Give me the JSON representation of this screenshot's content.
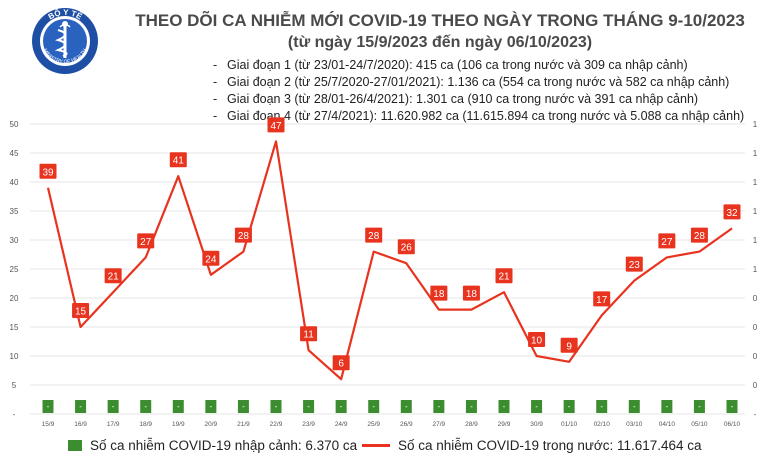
{
  "header": {
    "logo_text": "BỘ Y TẾ",
    "logo_subtext": "MINISTRY OF HEALTH",
    "title": "THEO DÕI CA NHIỄM MỚI COVID-19 THEO NGÀY TRONG THÁNG 9-10/2023",
    "subtitle": "(từ ngày 15/9/2023 đến ngày 06/10/2023)"
  },
  "phases": [
    "Giai đoạn 1 (từ 23/01-24/7/2020): 415 ca (106 ca trong nước và 309 ca nhập cảnh)",
    "Giai đoạn 2 (từ 25/7/2020-27/01/2021): 1.136 ca (554 ca trong nước và 582 ca nhập cảnh)",
    "Giai đoạn 3 (từ 28/01-26/4/2021): 1.301 ca (910 ca trong nước và 391 ca nhập cảnh)",
    "Giai đoạn 4 (từ 27/4/2021): 11.620.982 ca (11.615.894 ca trong nước và 5.088 ca nhập cảnh)"
  ],
  "legend": {
    "imported": "Số ca nhiễm COVID-19 nhập cảnh: 6.370 ca",
    "domestic": "Số ca nhiễm COVID-19 trong nước: 11.617.464 ca"
  },
  "colors": {
    "line": "#e8331f",
    "label_bg": "#e8331f",
    "bar": "#3c8d2f",
    "text": "#4a4a4a",
    "grid": "#e6e6e6"
  },
  "chart_data": {
    "type": "line",
    "title": "THEO DÕI CA NHIỄM MỚI COVID-19 THEO NGÀY TRONG THÁNG 9-10/2023",
    "categories": [
      "15/9",
      "16/9",
      "17/9",
      "18/9",
      "19/9",
      "20/9",
      "21/9",
      "22/9",
      "23/9",
      "24/9",
      "25/9",
      "26/9",
      "27/9",
      "28/9",
      "29/9",
      "30/9",
      "01/10",
      "02/10",
      "03/10",
      "04/10",
      "05/10",
      "06/10"
    ],
    "series": [
      {
        "name": "Số ca nhiễm COVID-19 trong nước",
        "type": "line",
        "values": [
          39,
          15,
          21,
          27,
          41,
          24,
          28,
          47,
          11,
          6,
          28,
          26,
          18,
          18,
          21,
          10,
          9,
          17,
          23,
          27,
          28,
          32
        ]
      },
      {
        "name": "Số ca nhiễm COVID-19 nhập cảnh",
        "type": "bar",
        "values": [
          0,
          0,
          0,
          0,
          0,
          0,
          0,
          0,
          0,
          0,
          0,
          0,
          0,
          0,
          0,
          0,
          0,
          0,
          0,
          0,
          0,
          0
        ],
        "label_text": "-"
      }
    ],
    "ylim": [
      0,
      50
    ],
    "yticks_left": [
      "-",
      "5",
      "10",
      "15",
      "20",
      "25",
      "30",
      "35",
      "40",
      "45",
      "50"
    ],
    "yticks_right": [
      "-",
      "0",
      "0",
      "0",
      "0",
      "1",
      "1",
      "1",
      "1",
      "1",
      "1"
    ],
    "xlabel": "",
    "ylabel": ""
  }
}
